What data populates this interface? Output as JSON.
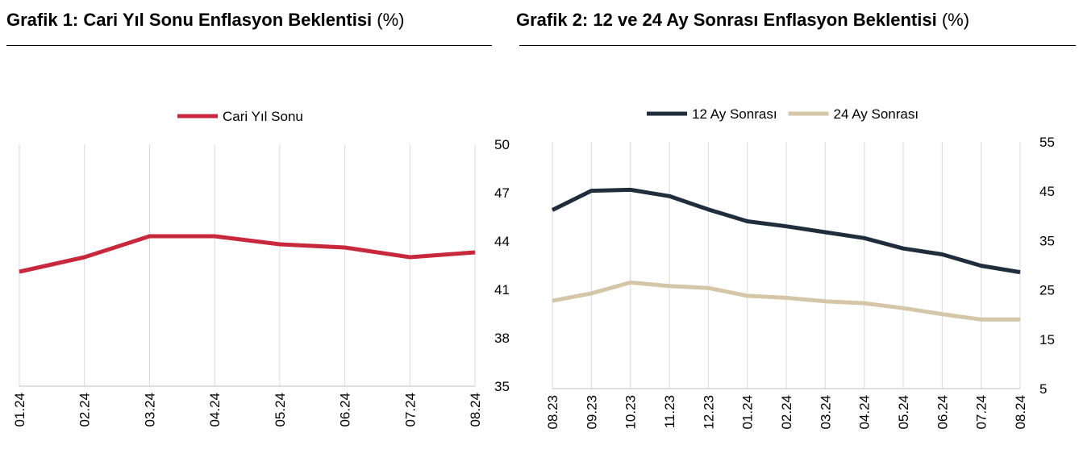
{
  "charts": [
    {
      "title_bold": "Grafik 1: Cari Yıl Sonu Enflasyon Beklentisi",
      "title_unit": "(%)"
    },
    {
      "title_bold": "Grafik 2: 12 ve 24 Ay Sonrası Enflasyon Beklentisi",
      "title_unit": "(%)"
    }
  ],
  "chart_data": [
    {
      "type": "line",
      "title": "Grafik 1: Cari Yıl Sonu Enflasyon Beklentisi (%)",
      "x": [
        "01.24",
        "02.24",
        "03.24",
        "04.24",
        "05.24",
        "06.24",
        "07.24",
        "08.24"
      ],
      "series": [
        {
          "name": "Cari Yıl Sonu",
          "color": "#c8283c",
          "values": [
            42.1,
            43.0,
            44.3,
            44.3,
            43.8,
            43.6,
            43.0,
            43.3
          ]
        }
      ],
      "ylim": [
        35,
        50
      ],
      "yticks": [
        35,
        38,
        41,
        44,
        47,
        50
      ],
      "y_axis_side": "right",
      "grid": "vertical",
      "legend": "top-center"
    },
    {
      "type": "line",
      "title": "Grafik 2: 12 ve 24 Ay Sonrası Enflasyon Beklentisi (%)",
      "x": [
        "08.23",
        "09.23",
        "10.23",
        "11.23",
        "12.23",
        "01.24",
        "02.24",
        "03.24",
        "04.24",
        "05.24",
        "06.24",
        "07.24",
        "08.24"
      ],
      "series": [
        {
          "name": "12 Ay Sonrası",
          "color": "#1f2d3d",
          "values": [
            41.2,
            45.1,
            45.3,
            44.0,
            41.3,
            38.9,
            37.9,
            36.7,
            35.5,
            33.4,
            32.2,
            29.9,
            28.6
          ]
        },
        {
          "name": "24 Ay Sonrası",
          "color": "#d4c6a6",
          "values": [
            22.8,
            24.3,
            26.5,
            25.8,
            25.4,
            23.8,
            23.4,
            22.7,
            22.3,
            21.3,
            20.1,
            19.0,
            19.0
          ]
        }
      ],
      "ylim": [
        5,
        55
      ],
      "yticks": [
        5,
        15,
        25,
        35,
        45,
        55
      ],
      "y_axis_side": "right",
      "grid": "vertical",
      "legend": "top-center"
    }
  ]
}
